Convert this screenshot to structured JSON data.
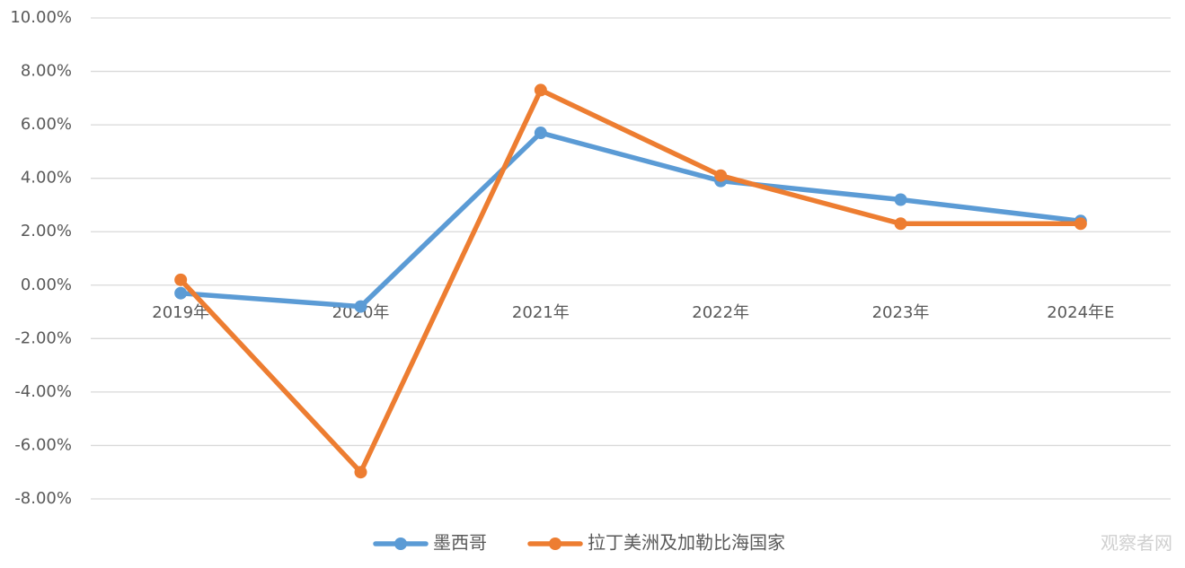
{
  "chart_data": {
    "type": "line",
    "categories": [
      "2019年",
      "2020年",
      "2021年",
      "2022年",
      "2023年",
      "2024年E"
    ],
    "series": [
      {
        "name": "墨西哥",
        "color": "#5B9BD5",
        "values": [
          -0.3,
          -0.8,
          5.7,
          3.9,
          3.2,
          2.4
        ]
      },
      {
        "name": "拉丁美洲及加勒比海国家",
        "color": "#ED7D31",
        "values": [
          0.2,
          -7.0,
          7.3,
          4.1,
          2.3,
          2.3
        ]
      }
    ],
    "y_ticks": [
      "10.00%",
      "8.00%",
      "6.00%",
      "4.00%",
      "2.00%",
      "0.00%",
      "-2.00%",
      "-4.00%",
      "-6.00%",
      "-8.00%"
    ],
    "ylim": [
      -8,
      10
    ],
    "y_unit": "%",
    "grid": true,
    "legend_position": "bottom"
  },
  "watermark": "观察者网"
}
